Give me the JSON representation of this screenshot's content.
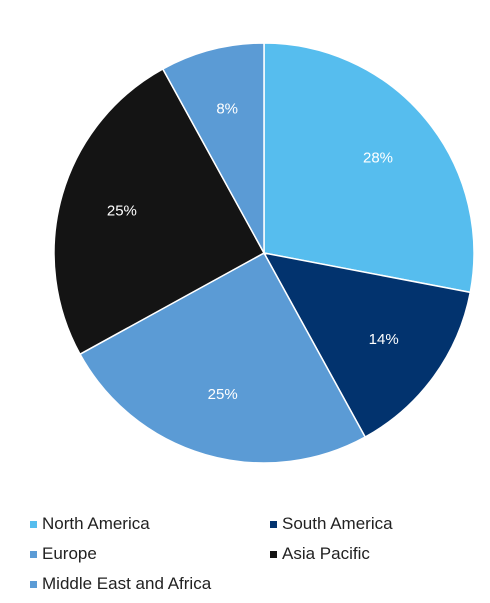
{
  "chart_data": {
    "type": "pie",
    "title": "",
    "categories": [
      "North America",
      "South America",
      "Europe",
      "Asia Pacific",
      "Middle East and Africa"
    ],
    "values": [
      28,
      14,
      25,
      25,
      8
    ],
    "labels": [
      "28%",
      "14%",
      "25%",
      "25%",
      "8%"
    ],
    "unit": "%",
    "start_angle": "12 o'clock",
    "direction": "clockwise",
    "colors": [
      "#56bdee",
      "#02336e",
      "#5b9bd5",
      "#141414",
      "#5b9bd5"
    ],
    "legend_position": "bottom"
  },
  "legend": {
    "items": [
      {
        "label": "North America",
        "color": "#56bdee"
      },
      {
        "label": "South America",
        "color": "#02336e"
      },
      {
        "label": "Europe",
        "color": "#5b9bd5"
      },
      {
        "label": "Asia Pacific",
        "color": "#141414"
      },
      {
        "label": "Middle East and Africa",
        "color": "#5b9bd5"
      }
    ]
  }
}
